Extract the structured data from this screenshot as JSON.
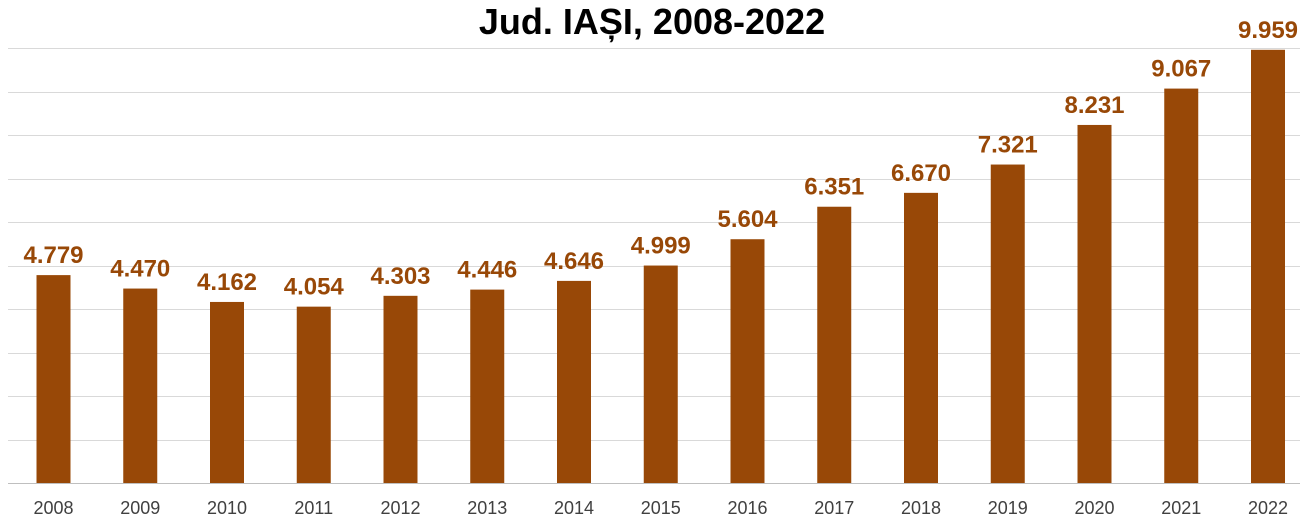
{
  "chart_data": {
    "type": "bar",
    "title": "Jud. IAȘI, 2008-2022",
    "xlabel": "",
    "ylabel": "",
    "categories": [
      "2008",
      "2009",
      "2010",
      "2011",
      "2012",
      "2013",
      "2014",
      "2015",
      "2016",
      "2017",
      "2018",
      "2019",
      "2020",
      "2021",
      "2022"
    ],
    "values": [
      4779,
      4470,
      4162,
      4054,
      4303,
      4446,
      4646,
      4999,
      5604,
      6351,
      6670,
      7321,
      8231,
      9067,
      9959
    ],
    "value_labels": [
      "4.779",
      "4.470",
      "4.162",
      "4.054",
      "4.303",
      "4.446",
      "4.646",
      "4.999",
      "5.604",
      "6.351",
      "6.670",
      "7.321",
      "8.231",
      "9.067",
      "9.959"
    ],
    "ylim": [
      0,
      10000
    ],
    "gridlines": true,
    "legend": "none",
    "bar_color": "#984807",
    "label_color": "#984807"
  }
}
